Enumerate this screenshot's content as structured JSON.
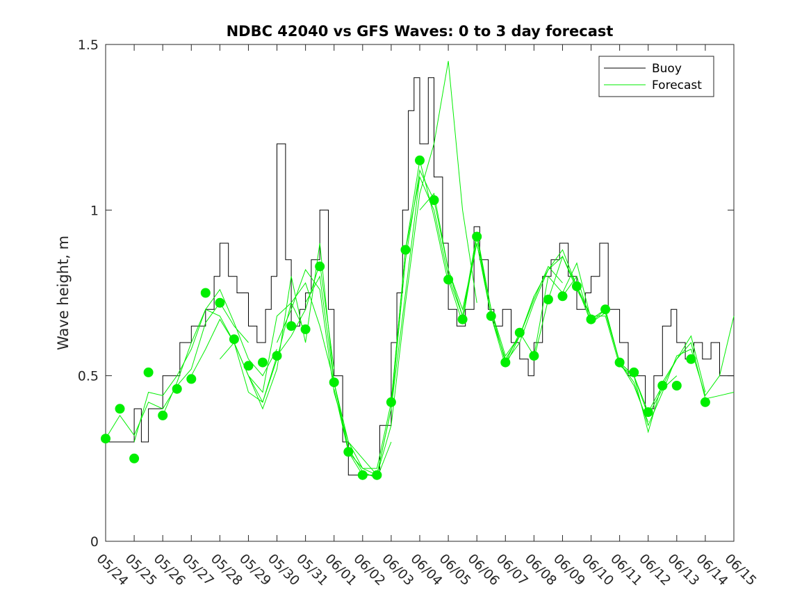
{
  "chart_data": {
    "type": "line",
    "title": "NDBC 42040 vs GFS Waves: 0 to 3 day forecast",
    "xlabel": "",
    "ylabel": "Wave height, m",
    "x_tick_labels": [
      "05/24",
      "05/25",
      "05/26",
      "05/27",
      "05/28",
      "05/29",
      "05/30",
      "05/31",
      "06/01",
      "06/02",
      "06/03",
      "06/04",
      "06/05",
      "06/06",
      "06/07",
      "06/08",
      "06/09",
      "06/10",
      "06/11",
      "06/12",
      "06/13",
      "06/14",
      "06/15"
    ],
    "y_tick_labels": [
      "0",
      "0.5",
      "1",
      "1.5"
    ],
    "xlim": [
      0,
      22
    ],
    "ylim": [
      0,
      1.5
    ],
    "legend": {
      "location": "top-right",
      "entries": [
        "Buoy",
        "Forecast"
      ]
    },
    "colors": {
      "buoy": "#000000",
      "forecast": "#00ee00"
    },
    "series": [
      {
        "name": "Buoy",
        "x": [
          0,
          0.5,
          1,
          1.25,
          1.5,
          2,
          2.3,
          2.6,
          3,
          3.5,
          3.8,
          4,
          4.3,
          4.6,
          5,
          5.3,
          5.6,
          5.8,
          6,
          6.3,
          6.5,
          6.8,
          7,
          7.2,
          7.5,
          7.8,
          8,
          8.3,
          8.5,
          8.7,
          9,
          9.3,
          9.6,
          10,
          10.2,
          10.4,
          10.6,
          10.8,
          11,
          11.3,
          11.5,
          11.8,
          12,
          12.3,
          12.6,
          12.9,
          13.1,
          13.4,
          13.6,
          13.9,
          14.2,
          14.5,
          14.8,
          15,
          15.3,
          15.6,
          15.9,
          16.2,
          16.5,
          16.8,
          17,
          17.3,
          17.6,
          18,
          18.3,
          18.6,
          18.9,
          19.2,
          19.5,
          19.8,
          20,
          20.3,
          20.6,
          20.9,
          21.2,
          21.5
        ],
        "y": [
          0.3,
          0.3,
          0.4,
          0.3,
          0.4,
          0.5,
          0.5,
          0.6,
          0.65,
          0.7,
          0.8,
          0.9,
          0.8,
          0.75,
          0.65,
          0.6,
          0.7,
          0.8,
          1.2,
          0.85,
          0.65,
          0.7,
          0.75,
          0.85,
          1.0,
          0.7,
          0.5,
          0.3,
          0.2,
          0.2,
          0.2,
          0.2,
          0.35,
          0.6,
          0.75,
          1.0,
          1.3,
          1.4,
          1.2,
          1.4,
          1.1,
          0.9,
          0.7,
          0.65,
          0.7,
          0.95,
          0.85,
          0.7,
          0.65,
          0.7,
          0.6,
          0.55,
          0.5,
          0.6,
          0.8,
          0.85,
          0.9,
          0.8,
          0.7,
          0.75,
          0.8,
          0.9,
          0.7,
          0.6,
          0.5,
          0.5,
          0.4,
          0.5,
          0.65,
          0.7,
          0.6,
          0.55,
          0.6,
          0.55,
          0.6,
          0.5
        ]
      }
    ],
    "forecast_runs": [
      {
        "name": "",
        "x": [
          0,
          0.5,
          1,
          1.5,
          2,
          2.5,
          3,
          3.5,
          4,
          4.5,
          5
        ],
        "y": [
          0.31,
          0.38,
          0.32,
          0.42,
          0.4,
          0.47,
          0.52,
          0.66,
          0.72,
          0.65,
          0.6
        ]
      },
      {
        "name": "",
        "x": [
          1,
          1.5,
          2,
          2.5,
          3,
          3.5,
          4,
          4.5,
          5,
          5.5,
          6
        ],
        "y": [
          0.3,
          0.45,
          0.44,
          0.5,
          0.58,
          0.7,
          0.76,
          0.66,
          0.55,
          0.5,
          0.58
        ]
      },
      {
        "name": "",
        "x": [
          2,
          2.5,
          3,
          3.5,
          4,
          4.5,
          5,
          5.5,
          6,
          6.5,
          7
        ],
        "y": [
          0.38,
          0.48,
          0.6,
          0.7,
          0.68,
          0.6,
          0.5,
          0.42,
          0.55,
          0.72,
          0.63
        ]
      },
      {
        "name": "",
        "x": [
          3,
          3.5,
          4,
          4.5,
          5,
          5.5,
          6,
          6.5,
          7,
          7.5,
          8
        ],
        "y": [
          0.5,
          0.58,
          0.67,
          0.6,
          0.45,
          0.42,
          0.56,
          0.62,
          0.7,
          0.84,
          0.52
        ]
      },
      {
        "name": "",
        "x": [
          4,
          4.5,
          5,
          5.5,
          6,
          6.5,
          7,
          7.5,
          8,
          8.5,
          9
        ],
        "y": [
          0.55,
          0.6,
          0.5,
          0.4,
          0.52,
          0.8,
          0.6,
          0.9,
          0.48,
          0.3,
          0.22
        ]
      },
      {
        "name": "",
        "x": [
          5,
          5.5,
          6,
          6.5,
          7,
          7.5,
          8,
          8.5,
          9,
          9.5,
          10
        ],
        "y": [
          0.5,
          0.45,
          0.68,
          0.72,
          0.78,
          0.65,
          0.48,
          0.28,
          0.21,
          0.19,
          0.3
        ]
      },
      {
        "name": "",
        "x": [
          6,
          6.5,
          7,
          7.5,
          8,
          8.5,
          9,
          9.5,
          10,
          10.5,
          11
        ],
        "y": [
          0.6,
          0.7,
          0.82,
          0.76,
          0.45,
          0.3,
          0.25,
          0.2,
          0.4,
          0.75,
          1.1
        ]
      },
      {
        "name": "",
        "x": [
          7,
          7.5,
          8,
          8.5,
          9,
          9.5,
          10,
          10.5,
          11,
          11.5,
          12
        ],
        "y": [
          0.72,
          0.8,
          0.48,
          0.27,
          0.22,
          0.22,
          0.42,
          0.88,
          1.15,
          0.98,
          0.78
        ]
      },
      {
        "name": "",
        "x": [
          8,
          8.5,
          9,
          9.5,
          10,
          10.5,
          11,
          11.5,
          12,
          12.5,
          13
        ],
        "y": [
          0.46,
          0.27,
          0.2,
          0.2,
          0.35,
          0.72,
          1.05,
          1.2,
          1.45,
          1.0,
          0.72
        ]
      },
      {
        "name": "",
        "x": [
          9,
          9.5,
          10,
          10.5,
          11,
          11.5,
          12,
          12.5,
          13,
          13.5,
          14
        ],
        "y": [
          0.22,
          0.2,
          0.4,
          0.85,
          1.12,
          1.03,
          0.82,
          0.7,
          0.9,
          0.68,
          0.55
        ]
      },
      {
        "name": "",
        "x": [
          10,
          10.5,
          11,
          11.5,
          12,
          12.5,
          13,
          13.5,
          14,
          14.5,
          15
        ],
        "y": [
          0.42,
          0.88,
          1.1,
          1.0,
          0.8,
          0.68,
          0.93,
          0.7,
          0.56,
          0.62,
          0.74
        ]
      },
      {
        "name": "",
        "x": [
          11,
          11.5,
          12,
          12.5,
          13,
          13.5,
          14,
          14.5,
          15,
          15.5,
          16
        ],
        "y": [
          1.0,
          1.05,
          0.82,
          0.68,
          0.9,
          0.68,
          0.55,
          0.62,
          0.73,
          0.83,
          0.78
        ]
      },
      {
        "name": "",
        "x": [
          12,
          12.5,
          13,
          13.5,
          14,
          14.5,
          15,
          15.5,
          16,
          16.5,
          17
        ],
        "y": [
          0.79,
          0.66,
          0.92,
          0.7,
          0.54,
          0.6,
          0.72,
          0.82,
          0.86,
          0.76,
          0.68
        ]
      },
      {
        "name": "",
        "x": [
          13,
          13.5,
          14,
          14.5,
          15,
          15.5,
          16,
          16.5,
          17,
          17.5,
          18
        ],
        "y": [
          0.92,
          0.68,
          0.53,
          0.62,
          0.74,
          0.82,
          0.88,
          0.77,
          0.66,
          0.69,
          0.54
        ]
      },
      {
        "name": "",
        "x": [
          14,
          14.5,
          15,
          15.5,
          16,
          16.5,
          17,
          17.5,
          18,
          18.5,
          19
        ],
        "y": [
          0.54,
          0.63,
          0.56,
          0.8,
          0.75,
          0.84,
          0.67,
          0.7,
          0.54,
          0.47,
          0.36
        ]
      },
      {
        "name": "",
        "x": [
          15,
          15.5,
          16,
          16.5,
          17,
          17.5,
          18,
          18.5,
          19,
          19.5,
          20
        ],
        "y": [
          0.55,
          0.73,
          0.86,
          0.77,
          0.68,
          0.68,
          0.53,
          0.5,
          0.38,
          0.46,
          0.5
        ]
      },
      {
        "name": "",
        "x": [
          16,
          16.5,
          17,
          17.5,
          18,
          18.5,
          19,
          19.5,
          20,
          20.5,
          21
        ],
        "y": [
          0.74,
          0.8,
          0.66,
          0.7,
          0.54,
          0.5,
          0.33,
          0.48,
          0.55,
          0.62,
          0.45
        ]
      },
      {
        "name": "",
        "x": [
          17,
          17.5,
          18,
          18.5,
          19,
          19.5,
          20,
          20.5,
          21,
          21.5,
          22
        ],
        "y": [
          0.67,
          0.7,
          0.54,
          0.48,
          0.35,
          0.45,
          0.56,
          0.58,
          0.44,
          0.5,
          0.68
        ]
      },
      {
        "name": "",
        "x": [
          18,
          18.5,
          19,
          19.5,
          20,
          20.5,
          21,
          21.5,
          22
        ],
        "y": [
          0.54,
          0.5,
          0.39,
          0.47,
          0.55,
          0.6,
          0.43,
          0.44,
          0.45
        ]
      }
    ],
    "forecast_markers": {
      "x": [
        0,
        0.5,
        1,
        1.5,
        2,
        2.5,
        3,
        3.5,
        4,
        4.5,
        5,
        5.5,
        6,
        6.5,
        7,
        7.5,
        8,
        8.5,
        9,
        9.5,
        10,
        10.5,
        11,
        11.5,
        12,
        12.5,
        13,
        13.5,
        14,
        14.5,
        15,
        15.5,
        16,
        16.5,
        17,
        17.5,
        18,
        18.5,
        19,
        19.5,
        20,
        20.5,
        21
      ],
      "y": [
        0.31,
        0.4,
        0.25,
        0.51,
        0.38,
        0.46,
        0.49,
        0.75,
        0.72,
        0.61,
        0.53,
        0.54,
        0.56,
        0.65,
        0.64,
        0.83,
        0.48,
        0.27,
        0.2,
        0.2,
        0.42,
        0.88,
        1.15,
        1.03,
        0.79,
        0.67,
        0.92,
        0.68,
        0.54,
        0.63,
        0.56,
        0.73,
        0.74,
        0.77,
        0.67,
        0.7,
        0.54,
        0.51,
        0.39,
        0.47,
        0.47,
        0.55,
        0.42
      ]
    }
  }
}
